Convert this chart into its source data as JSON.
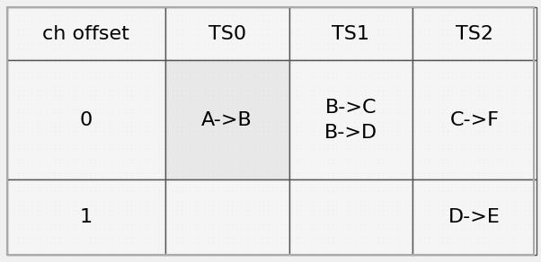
{
  "col_headers": [
    "ch offset",
    "TS0",
    "TS1",
    "TS2"
  ],
  "rows": [
    [
      "0",
      "A->B",
      "B->C\nB->D",
      "C->F"
    ],
    [
      "1",
      "",
      "",
      "D->E"
    ]
  ],
  "cell_bg": "#f5f5f5",
  "cell_bg_ts0_row0": "#e8e8e8",
  "border_color": "#555555",
  "text_color": "#000000",
  "font_size": 16,
  "fig_width": 6.02,
  "fig_height": 2.92,
  "outer_border_color": "#aaaaaa",
  "outer_border_lw": 1.5,
  "inner_border_lw": 1.0
}
